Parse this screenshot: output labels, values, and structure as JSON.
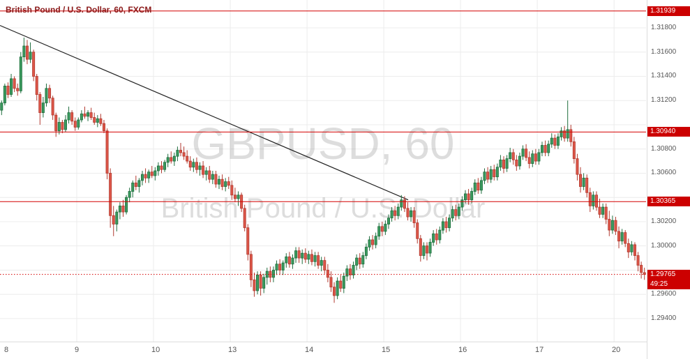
{
  "header": {
    "title": "British Pound / U.S. Dollar, 60, FXCM"
  },
  "watermark": {
    "line1": "GBPUSD, 60",
    "line2": "British Pound / U.S. Dollar"
  },
  "colors": {
    "background": "#ffffff",
    "grid": "#ececec",
    "watermark": "rgba(120,120,120,0.25)",
    "up": "#3b9a5e",
    "up_border": "#1f6e3e",
    "down": "#dd5749",
    "down_border": "#b23a30",
    "level": "#d40000",
    "badge_bg": "#cc0000",
    "badge_text": "#ffffff",
    "trendline": "#222222",
    "title": "#8b1a1a",
    "axis_text": "#555555"
  },
  "price_axis": {
    "labels": [
      {
        "text": "1.31800",
        "price": 1.318
      },
      {
        "text": "1.31600",
        "price": 1.316
      },
      {
        "text": "1.31400",
        "price": 1.314
      },
      {
        "text": "1.31200",
        "price": 1.312
      },
      {
        "text": "1.30800",
        "price": 1.308
      },
      {
        "text": "1.30600",
        "price": 1.306
      },
      {
        "text": "1.30200",
        "price": 1.302
      },
      {
        "text": "1.30000",
        "price": 1.3
      },
      {
        "text": "1.29600",
        "price": 1.296
      },
      {
        "text": "1.29400",
        "price": 1.294
      }
    ],
    "badges": [
      {
        "text": "1.31939",
        "price": 1.31939
      },
      {
        "text": "1.30940",
        "price": 1.3094
      },
      {
        "text": "1.30365",
        "price": 1.30365
      },
      {
        "text": "1.29765",
        "price": 1.29765,
        "countdown": "49:25"
      }
    ]
  },
  "chart_data": {
    "type": "candlestick",
    "symbol": "GBPUSD",
    "interval": "60",
    "source": "FXCM",
    "title": "British Pound / U.S. Dollar, 60, FXCM",
    "ylim": [
      1.2921,
      1.3203
    ],
    "price_scale": 100000,
    "grid_prices": [
      1.318,
      1.316,
      1.314,
      1.312,
      1.31,
      1.308,
      1.306,
      1.304,
      1.302,
      1.3,
      1.298,
      1.296,
      1.294
    ],
    "levels": [
      {
        "price": 1.31939,
        "style": "solid"
      },
      {
        "price": 1.3094,
        "style": "solid"
      },
      {
        "price": 1.30365,
        "style": "solid"
      },
      {
        "price": 1.29765,
        "style": "dotted"
      }
    ],
    "trendline": {
      "x1": 0,
      "price1": 1.3182,
      "x2": 585,
      "price2": 1.3038
    },
    "current_price": 1.29765,
    "day_starts": [
      {
        "label": "8",
        "index": 0
      },
      {
        "label": "9",
        "index": 24
      },
      {
        "label": "10",
        "index": 48
      },
      {
        "label": "13",
        "index": 72
      },
      {
        "label": "14",
        "index": 96
      },
      {
        "label": "15",
        "index": 120
      },
      {
        "label": "16",
        "index": 144
      },
      {
        "label": "17",
        "index": 168
      },
      {
        "label": "20",
        "index": 192
      }
    ],
    "candles": [
      [
        131120,
        131200,
        131080,
        131180
      ],
      [
        131180,
        131340,
        131160,
        131320
      ],
      [
        131320,
        131350,
        131220,
        131250
      ],
      [
        131250,
        131420,
        131230,
        131380
      ],
      [
        131380,
        131400,
        131270,
        131300
      ],
      [
        131300,
        131340,
        131240,
        131280
      ],
      [
        131280,
        131600,
        131260,
        131560
      ],
      [
        131560,
        131720,
        131520,
        131650
      ],
      [
        131650,
        131700,
        131500,
        131540
      ],
      [
        131540,
        131680,
        131510,
        131600
      ],
      [
        131600,
        131620,
        131360,
        131400
      ],
      [
        131400,
        131420,
        131200,
        131250
      ],
      [
        131250,
        131270,
        131000,
        131100
      ],
      [
        131100,
        131230,
        131060,
        131180
      ],
      [
        131180,
        131340,
        131150,
        131300
      ],
      [
        131300,
        131330,
        131180,
        131220
      ],
      [
        131220,
        131240,
        131040,
        131080
      ],
      [
        131080,
        131100,
        130900,
        130950
      ],
      [
        130950,
        131060,
        130920,
        131020
      ],
      [
        131020,
        131040,
        130930,
        130960
      ],
      [
        130960,
        131080,
        130940,
        131040
      ],
      [
        131040,
        131150,
        131010,
        131100
      ],
      [
        131100,
        131120,
        131000,
        131030
      ],
      [
        131030,
        131060,
        130950,
        130980
      ],
      [
        130980,
        131060,
        130960,
        131040
      ],
      [
        131040,
        131120,
        131020,
        131090
      ],
      [
        131090,
        131150,
        131050,
        131070
      ],
      [
        131070,
        131120,
        131030,
        131100
      ],
      [
        131100,
        131140,
        131040,
        131060
      ],
      [
        131060,
        131100,
        131000,
        131020
      ],
      [
        131020,
        131080,
        130980,
        131050
      ],
      [
        131050,
        131090,
        130990,
        131010
      ],
      [
        131010,
        131040,
        130930,
        130950
      ],
      [
        130950,
        130970,
        130550,
        130600
      ],
      [
        130600,
        130640,
        130150,
        130250
      ],
      [
        130250,
        130330,
        130080,
        130180
      ],
      [
        130180,
        130300,
        130120,
        130280
      ],
      [
        130280,
        130360,
        130220,
        130330
      ],
      [
        130330,
        130380,
        130240,
        130280
      ],
      [
        130280,
        130420,
        130260,
        130400
      ],
      [
        130400,
        130480,
        130360,
        130450
      ],
      [
        130450,
        130540,
        130400,
        130520
      ],
      [
        130520,
        130580,
        130460,
        130490
      ],
      [
        130490,
        130560,
        130440,
        130540
      ],
      [
        130540,
        130620,
        130500,
        130590
      ],
      [
        130590,
        130640,
        130520,
        130560
      ],
      [
        130560,
        130630,
        130520,
        130610
      ],
      [
        130610,
        130660,
        130560,
        130580
      ],
      [
        130580,
        130650,
        130540,
        130620
      ],
      [
        130620,
        130690,
        130580,
        130660
      ],
      [
        130660,
        130700,
        130600,
        130630
      ],
      [
        130630,
        130710,
        130610,
        130690
      ],
      [
        130690,
        130760,
        130650,
        130730
      ],
      [
        130730,
        130780,
        130680,
        130700
      ],
      [
        130700,
        130770,
        130660,
        130740
      ],
      [
        130740,
        130820,
        130700,
        130790
      ],
      [
        130790,
        130850,
        130740,
        130770
      ],
      [
        130770,
        130820,
        130710,
        130740
      ],
      [
        130740,
        130790,
        130680,
        130700
      ],
      [
        130700,
        130740,
        130620,
        130650
      ],
      [
        130650,
        130720,
        130610,
        130690
      ],
      [
        130690,
        130730,
        130600,
        130630
      ],
      [
        130630,
        130690,
        130580,
        130660
      ],
      [
        130660,
        130700,
        130560,
        130590
      ],
      [
        130590,
        130650,
        130540,
        130620
      ],
      [
        130620,
        130660,
        130520,
        130550
      ],
      [
        130550,
        130620,
        130510,
        130590
      ],
      [
        130590,
        130620,
        130480,
        130510
      ],
      [
        130510,
        130580,
        130470,
        130550
      ],
      [
        130550,
        130590,
        130460,
        130490
      ],
      [
        130490,
        130560,
        130450,
        130530
      ],
      [
        130530,
        130570,
        130470,
        130500
      ],
      [
        130500,
        130540,
        130380,
        130420
      ],
      [
        130420,
        130480,
        130360,
        130390
      ],
      [
        130390,
        130450,
        130330,
        130420
      ],
      [
        130420,
        130440,
        130280,
        130310
      ],
      [
        130310,
        130340,
        130120,
        130150
      ],
      [
        130150,
        130180,
        129880,
        129930
      ],
      [
        129930,
        129960,
        129660,
        129720
      ],
      [
        129720,
        129780,
        129580,
        129630
      ],
      [
        129630,
        129790,
        129600,
        129760
      ],
      [
        129760,
        129790,
        129590,
        129650
      ],
      [
        129650,
        129770,
        129610,
        129740
      ],
      [
        129740,
        129820,
        129680,
        129790
      ],
      [
        129790,
        129830,
        129700,
        129740
      ],
      [
        129740,
        129830,
        129700,
        129800
      ],
      [
        129800,
        129880,
        129760,
        129850
      ],
      [
        129850,
        129890,
        129760,
        129800
      ],
      [
        129800,
        129880,
        129760,
        129860
      ],
      [
        129860,
        129940,
        129820,
        129910
      ],
      [
        129910,
        129950,
        129820,
        129850
      ],
      [
        129850,
        129930,
        129810,
        129900
      ],
      [
        129900,
        129990,
        129860,
        129960
      ],
      [
        129960,
        129990,
        129860,
        129900
      ],
      [
        129900,
        129970,
        129850,
        129940
      ],
      [
        129940,
        129980,
        129860,
        129890
      ],
      [
        129890,
        129960,
        129850,
        129930
      ],
      [
        129930,
        129970,
        129840,
        129870
      ],
      [
        129870,
        129950,
        129830,
        129920
      ],
      [
        129920,
        129950,
        129810,
        129840
      ],
      [
        129840,
        129910,
        129790,
        129880
      ],
      [
        129880,
        129910,
        129770,
        129800
      ],
      [
        129800,
        129850,
        129700,
        129740
      ],
      [
        129740,
        129790,
        129620,
        129660
      ],
      [
        129660,
        129700,
        129530,
        129590
      ],
      [
        129590,
        129740,
        129560,
        129710
      ],
      [
        129710,
        129760,
        129620,
        129650
      ],
      [
        129650,
        129780,
        129610,
        129750
      ],
      [
        129750,
        129840,
        129710,
        129810
      ],
      [
        129810,
        129850,
        129720,
        129760
      ],
      [
        129760,
        129870,
        129730,
        129840
      ],
      [
        129840,
        129930,
        129800,
        129900
      ],
      [
        129900,
        129940,
        129810,
        129850
      ],
      [
        129850,
        129950,
        129820,
        129920
      ],
      [
        129920,
        130020,
        129890,
        129990
      ],
      [
        129990,
        130080,
        129960,
        130050
      ],
      [
        130050,
        130090,
        129970,
        130010
      ],
      [
        130010,
        130110,
        129980,
        130080
      ],
      [
        130080,
        130190,
        130050,
        130160
      ],
      [
        130160,
        130200,
        130080,
        130120
      ],
      [
        130120,
        130210,
        130090,
        130180
      ],
      [
        130180,
        130260,
        130140,
        130230
      ],
      [
        130230,
        130320,
        130200,
        130290
      ],
      [
        130290,
        130330,
        130210,
        130250
      ],
      [
        130250,
        130350,
        130220,
        130320
      ],
      [
        130320,
        130420,
        130290,
        130380
      ],
      [
        130380,
        130410,
        130280,
        130310
      ],
      [
        130310,
        130360,
        130210,
        130240
      ],
      [
        130240,
        130320,
        130200,
        130290
      ],
      [
        130290,
        130320,
        130150,
        130190
      ],
      [
        130190,
        130220,
        130020,
        130060
      ],
      [
        130060,
        130090,
        129870,
        129920
      ],
      [
        129920,
        130030,
        129890,
        130000
      ],
      [
        130000,
        130030,
        129880,
        129940
      ],
      [
        129940,
        130060,
        129910,
        130030
      ],
      [
        130030,
        130130,
        130000,
        130100
      ],
      [
        130100,
        130140,
        130010,
        130050
      ],
      [
        130050,
        130160,
        130020,
        130130
      ],
      [
        130130,
        130230,
        130100,
        130200
      ],
      [
        130200,
        130240,
        130110,
        130150
      ],
      [
        130150,
        130260,
        130120,
        130230
      ],
      [
        130230,
        130330,
        130200,
        130300
      ],
      [
        130300,
        130340,
        130210,
        130250
      ],
      [
        130250,
        130350,
        130220,
        130320
      ],
      [
        130320,
        130410,
        130290,
        130380
      ],
      [
        130380,
        130460,
        130350,
        130430
      ],
      [
        130430,
        130470,
        130340,
        130380
      ],
      [
        130380,
        130480,
        130350,
        130450
      ],
      [
        130450,
        130550,
        130420,
        130520
      ],
      [
        130520,
        130560,
        130430,
        130460
      ],
      [
        130460,
        130570,
        130430,
        130540
      ],
      [
        130540,
        130640,
        130510,
        130610
      ],
      [
        130610,
        130650,
        130520,
        130550
      ],
      [
        130550,
        130660,
        130520,
        130630
      ],
      [
        130630,
        130670,
        130540,
        130570
      ],
      [
        130570,
        130680,
        130540,
        130650
      ],
      [
        130650,
        130750,
        130620,
        130710
      ],
      [
        130710,
        130740,
        130600,
        130640
      ],
      [
        130640,
        130750,
        130610,
        130720
      ],
      [
        130720,
        130810,
        130690,
        130770
      ],
      [
        130770,
        130800,
        130670,
        130710
      ],
      [
        130710,
        130750,
        130620,
        130660
      ],
      [
        130660,
        130770,
        130630,
        130740
      ],
      [
        130740,
        130830,
        130710,
        130800
      ],
      [
        130800,
        130840,
        130700,
        130730
      ],
      [
        130730,
        130780,
        130640,
        130680
      ],
      [
        130680,
        130790,
        130650,
        130760
      ],
      [
        130760,
        130800,
        130670,
        130700
      ],
      [
        130700,
        130800,
        130670,
        130770
      ],
      [
        130770,
        130860,
        130740,
        130830
      ],
      [
        130830,
        130870,
        130740,
        130770
      ],
      [
        130770,
        130870,
        130740,
        130840
      ],
      [
        130840,
        130930,
        130810,
        130890
      ],
      [
        130890,
        130920,
        130800,
        130830
      ],
      [
        130830,
        130930,
        130800,
        130900
      ],
      [
        130900,
        130980,
        130870,
        130950
      ],
      [
        130950,
        130990,
        130860,
        130890
      ],
      [
        130890,
        131200,
        130860,
        130960
      ],
      [
        130960,
        131000,
        130820,
        130860
      ],
      [
        130860,
        130900,
        130680,
        130720
      ],
      [
        130720,
        130760,
        130540,
        130590
      ],
      [
        130590,
        130650,
        130440,
        130490
      ],
      [
        130490,
        130600,
        130460,
        130560
      ],
      [
        130560,
        130590,
        130400,
        130440
      ],
      [
        130440,
        130480,
        130280,
        130330
      ],
      [
        130330,
        130450,
        130300,
        130420
      ],
      [
        130420,
        130450,
        130290,
        130320
      ],
      [
        130320,
        130390,
        130230,
        130260
      ],
      [
        130260,
        130350,
        130230,
        130320
      ],
      [
        130320,
        130350,
        130180,
        130220
      ],
      [
        130220,
        130290,
        130080,
        130130
      ],
      [
        130130,
        130250,
        130100,
        130210
      ],
      [
        130210,
        130240,
        130090,
        130120
      ],
      [
        130120,
        130160,
        129980,
        130040
      ],
      [
        130040,
        130140,
        130010,
        130110
      ],
      [
        130110,
        130130,
        129990,
        130020
      ],
      [
        130020,
        130060,
        129900,
        129950
      ],
      [
        129950,
        130040,
        129920,
        130010
      ],
      [
        130010,
        130030,
        129880,
        129920
      ],
      [
        129920,
        129950,
        129790,
        129840
      ],
      [
        129840,
        129870,
        129730,
        129780
      ],
      [
        129780,
        129820,
        129720,
        129765
      ]
    ]
  }
}
